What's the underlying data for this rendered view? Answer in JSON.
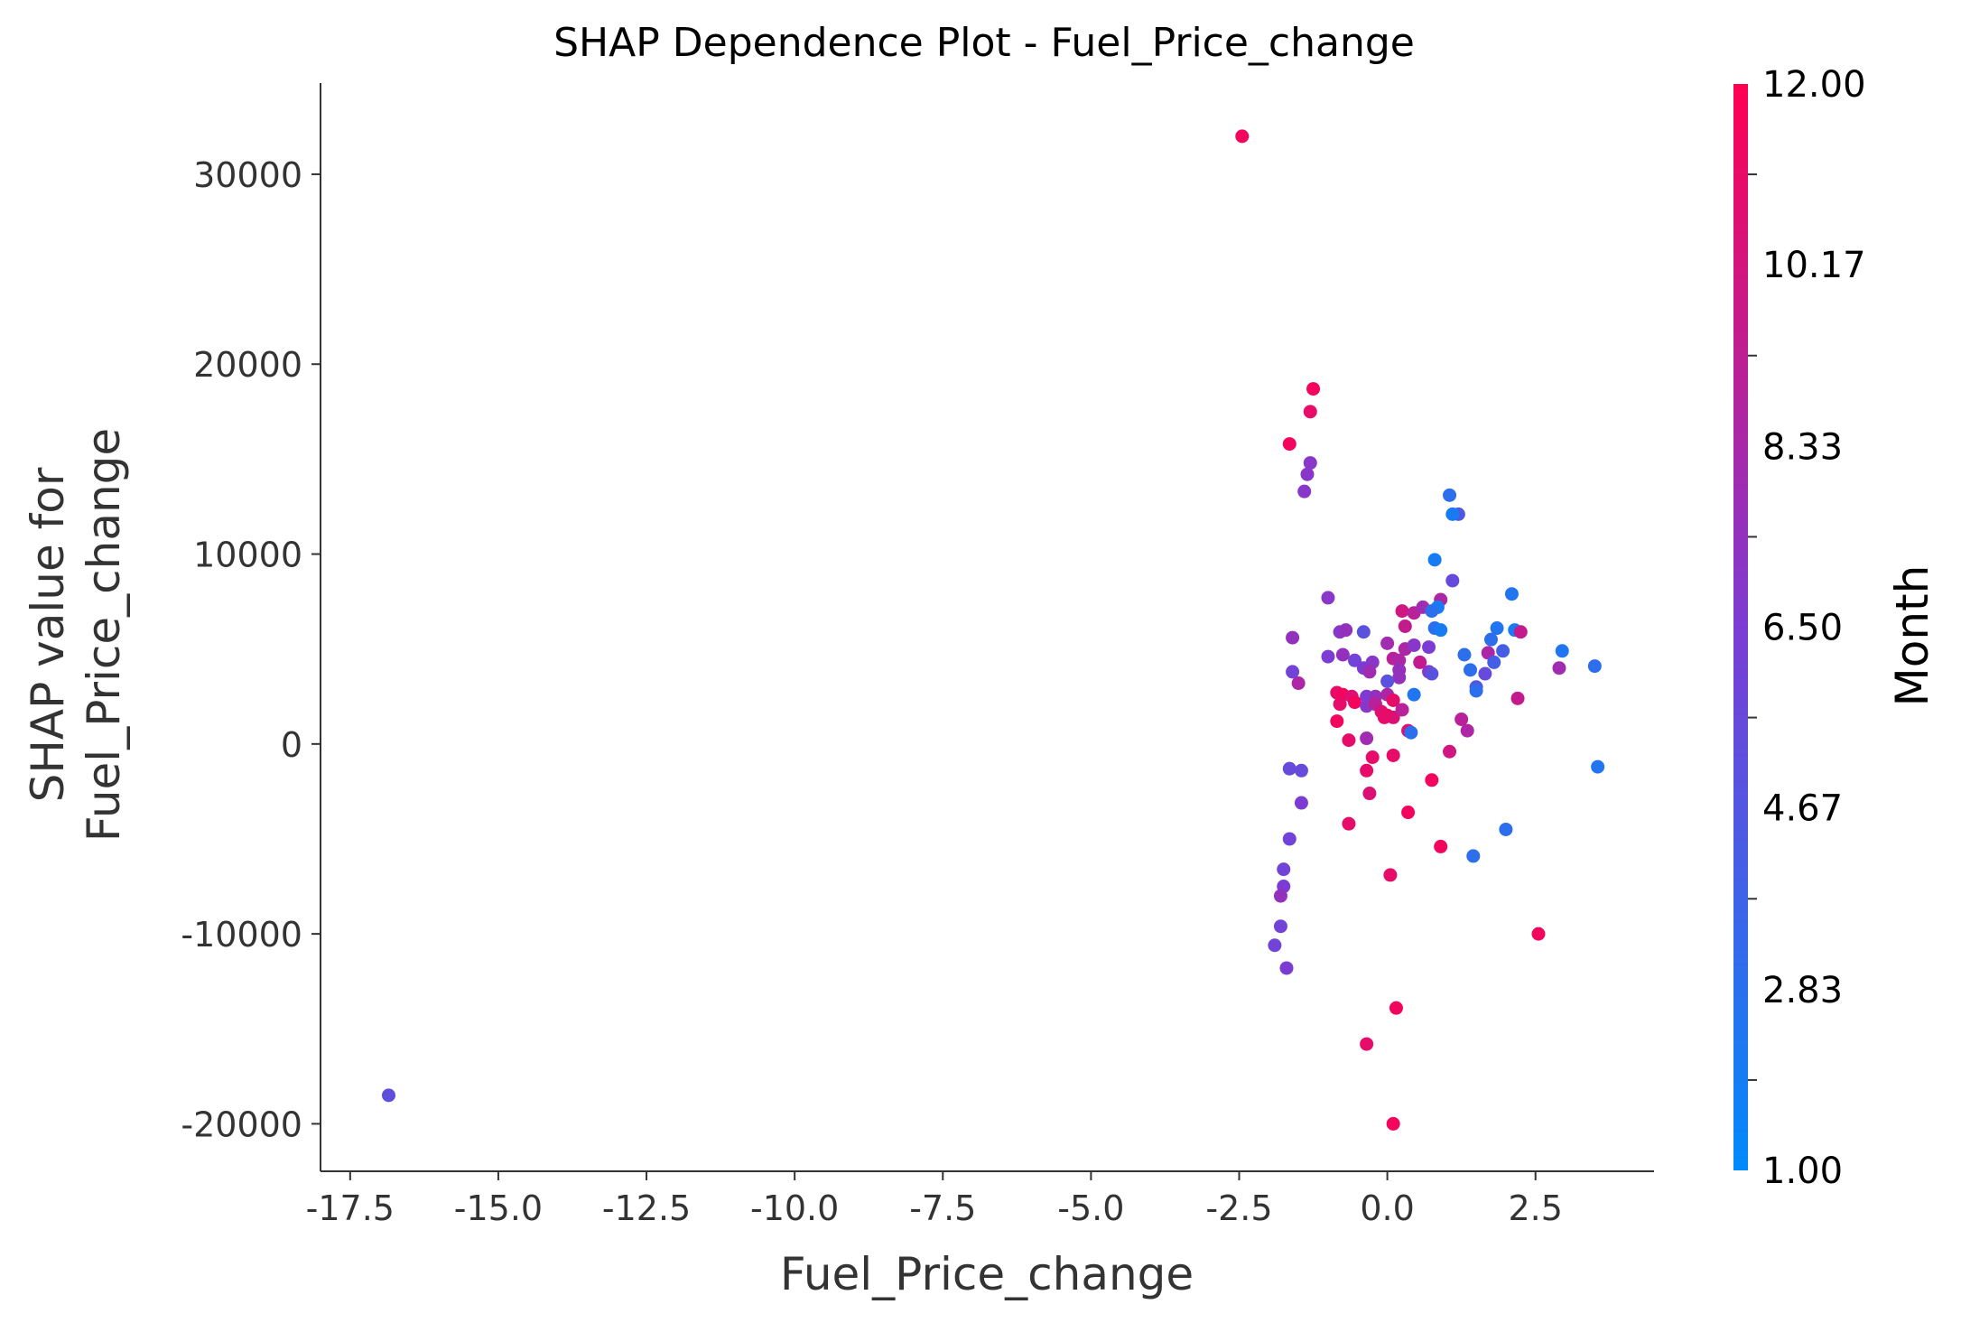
{
  "chart_data": {
    "type": "scatter",
    "title": "SHAP Dependence Plot - Fuel_Price_change",
    "xlabel": "Fuel_Price_change",
    "ylabel": [
      "SHAP value for",
      "Fuel_Price_change"
    ],
    "xlim": [
      -18.0,
      4.5
    ],
    "ylim": [
      -22500,
      34800
    ],
    "xticks": [
      -17.5,
      -15.0,
      -12.5,
      -10.0,
      -7.5,
      -5.0,
      -2.5,
      0.0,
      2.5
    ],
    "xtick_labels": [
      "-17.5",
      "-15.0",
      "-12.5",
      "-10.0",
      "-7.5",
      "-5.0",
      "-2.5",
      "0.0",
      "2.5"
    ],
    "yticks": [
      30000,
      20000,
      10000,
      0,
      -10000,
      -20000
    ],
    "ytick_labels": [
      "30000",
      "20000",
      "10000",
      "0",
      "-10000",
      "-20000"
    ],
    "grid": false,
    "colorbar": {
      "label": "Month",
      "min": 1.0,
      "max": 12.0,
      "ticks": [
        12.0,
        10.17,
        8.33,
        6.5,
        4.67,
        2.83,
        1.0
      ],
      "tick_labels": [
        "12.00",
        "10.17",
        "8.33",
        "6.50",
        "4.67",
        "2.83",
        "1.00"
      ],
      "color_low": "#008afb",
      "color_mid": "#7c3cd4",
      "color_high": "#ff0052"
    },
    "points": [
      {
        "x": -16.85,
        "y": -18500,
        "c": 5.2
      },
      {
        "x": -2.45,
        "y": 32000,
        "c": 11.5
      },
      {
        "x": -1.25,
        "y": 18700,
        "c": 11.5
      },
      {
        "x": -1.3,
        "y": 17500,
        "c": 11.0
      },
      {
        "x": -1.65,
        "y": 15800,
        "c": 11.5
      },
      {
        "x": -1.3,
        "y": 14800,
        "c": 7.0
      },
      {
        "x": -1.35,
        "y": 14200,
        "c": 7.0
      },
      {
        "x": -1.4,
        "y": 13300,
        "c": 7.0
      },
      {
        "x": 1.05,
        "y": 13100,
        "c": 3.0
      },
      {
        "x": 1.2,
        "y": 12100,
        "c": 4.5
      },
      {
        "x": 1.1,
        "y": 12100,
        "c": 2.0
      },
      {
        "x": 0.8,
        "y": 9700,
        "c": 2.0
      },
      {
        "x": 1.1,
        "y": 8600,
        "c": 5.5
      },
      {
        "x": -1.0,
        "y": 7700,
        "c": 7.0
      },
      {
        "x": 2.1,
        "y": 7900,
        "c": 2.5
      },
      {
        "x": 0.25,
        "y": 7000,
        "c": 10.0
      },
      {
        "x": 0.45,
        "y": 6900,
        "c": 9.0
      },
      {
        "x": 0.6,
        "y": 7200,
        "c": 8.0
      },
      {
        "x": 0.9,
        "y": 7600,
        "c": 8.5
      },
      {
        "x": 0.85,
        "y": 7200,
        "c": 2.0
      },
      {
        "x": 0.75,
        "y": 7000,
        "c": 3.0
      },
      {
        "x": 0.3,
        "y": 6200,
        "c": 9.5
      },
      {
        "x": 0.8,
        "y": 6100,
        "c": 3.0
      },
      {
        "x": 0.9,
        "y": 6000,
        "c": 2.0
      },
      {
        "x": 1.85,
        "y": 6100,
        "c": 2.5
      },
      {
        "x": 2.15,
        "y": 6000,
        "c": 2.0
      },
      {
        "x": 2.25,
        "y": 5900,
        "c": 9.5
      },
      {
        "x": -0.8,
        "y": 5900,
        "c": 7.0
      },
      {
        "x": -0.7,
        "y": 6000,
        "c": 7.5
      },
      {
        "x": -0.4,
        "y": 5900,
        "c": 5.0
      },
      {
        "x": -1.6,
        "y": 5600,
        "c": 7.5
      },
      {
        "x": 0.0,
        "y": 5300,
        "c": 8.0
      },
      {
        "x": 0.3,
        "y": 5000,
        "c": 8.5
      },
      {
        "x": 0.45,
        "y": 5200,
        "c": 7.0
      },
      {
        "x": 0.7,
        "y": 5100,
        "c": 6.5
      },
      {
        "x": 1.75,
        "y": 5500,
        "c": 3.0
      },
      {
        "x": 1.95,
        "y": 4900,
        "c": 4.0
      },
      {
        "x": 2.95,
        "y": 4900,
        "c": 2.5
      },
      {
        "x": 3.5,
        "y": 4100,
        "c": 3.0
      },
      {
        "x": -1.0,
        "y": 4600,
        "c": 6.5
      },
      {
        "x": -0.75,
        "y": 4700,
        "c": 7.5
      },
      {
        "x": -0.55,
        "y": 4400,
        "c": 6.0
      },
      {
        "x": -0.25,
        "y": 4300,
        "c": 7.0
      },
      {
        "x": 0.1,
        "y": 4500,
        "c": 9.0
      },
      {
        "x": 0.2,
        "y": 4400,
        "c": 8.5
      },
      {
        "x": 0.55,
        "y": 4300,
        "c": 9.5
      },
      {
        "x": 1.3,
        "y": 4700,
        "c": 3.0
      },
      {
        "x": 1.7,
        "y": 4800,
        "c": 8.5
      },
      {
        "x": 1.8,
        "y": 4300,
        "c": 4.0
      },
      {
        "x": 2.9,
        "y": 4000,
        "c": 8.0
      },
      {
        "x": -0.4,
        "y": 4000,
        "c": 6.5
      },
      {
        "x": -0.3,
        "y": 3800,
        "c": 8.0
      },
      {
        "x": 0.2,
        "y": 3900,
        "c": 7.5
      },
      {
        "x": 0.7,
        "y": 3800,
        "c": 7.0
      },
      {
        "x": 0.75,
        "y": 3700,
        "c": 5.0
      },
      {
        "x": 1.4,
        "y": 3900,
        "c": 3.0
      },
      {
        "x": 1.65,
        "y": 3700,
        "c": 5.5
      },
      {
        "x": -1.6,
        "y": 3800,
        "c": 6.0
      },
      {
        "x": -1.5,
        "y": 3200,
        "c": 8.5
      },
      {
        "x": 0.2,
        "y": 3500,
        "c": 7.5
      },
      {
        "x": 0.0,
        "y": 3300,
        "c": 5.0
      },
      {
        "x": 1.5,
        "y": 3000,
        "c": 4.5
      },
      {
        "x": 1.5,
        "y": 2800,
        "c": 3.0
      },
      {
        "x": -0.85,
        "y": 2700,
        "c": 11.0
      },
      {
        "x": -0.75,
        "y": 2600,
        "c": 11.5
      },
      {
        "x": -0.6,
        "y": 2500,
        "c": 10.5
      },
      {
        "x": -0.35,
        "y": 2500,
        "c": 6.5
      },
      {
        "x": -0.2,
        "y": 2500,
        "c": 7.5
      },
      {
        "x": 0.0,
        "y": 2600,
        "c": 8.5
      },
      {
        "x": 0.1,
        "y": 2300,
        "c": 11.0
      },
      {
        "x": 0.45,
        "y": 2600,
        "c": 2.5
      },
      {
        "x": 2.2,
        "y": 2400,
        "c": 9.5
      },
      {
        "x": -0.8,
        "y": 2100,
        "c": 11.0
      },
      {
        "x": -0.55,
        "y": 2200,
        "c": 11.5
      },
      {
        "x": -0.35,
        "y": 2000,
        "c": 7.0
      },
      {
        "x": -0.2,
        "y": 2100,
        "c": 9.0
      },
      {
        "x": -0.1,
        "y": 1700,
        "c": 10.5
      },
      {
        "x": 0.0,
        "y": 1500,
        "c": 11.5
      },
      {
        "x": 0.1,
        "y": 1400,
        "c": 10.5
      },
      {
        "x": 0.25,
        "y": 1800,
        "c": 9.0
      },
      {
        "x": -0.05,
        "y": 1400,
        "c": 11.0
      },
      {
        "x": -0.85,
        "y": 1200,
        "c": 11.5
      },
      {
        "x": 1.25,
        "y": 1300,
        "c": 9.0
      },
      {
        "x": 1.35,
        "y": 700,
        "c": 8.5
      },
      {
        "x": 0.35,
        "y": 700,
        "c": 10.5
      },
      {
        "x": 0.4,
        "y": 600,
        "c": 3.0
      },
      {
        "x": -0.35,
        "y": 300,
        "c": 8.0
      },
      {
        "x": -0.65,
        "y": 200,
        "c": 11.0
      },
      {
        "x": 1.05,
        "y": -400,
        "c": 10.0
      },
      {
        "x": 0.1,
        "y": -600,
        "c": 11.0
      },
      {
        "x": -0.25,
        "y": -700,
        "c": 11.0
      },
      {
        "x": 3.55,
        "y": -1200,
        "c": 2.5
      },
      {
        "x": -1.65,
        "y": -1300,
        "c": 5.5
      },
      {
        "x": -1.45,
        "y": -1400,
        "c": 5.5
      },
      {
        "x": -0.35,
        "y": -1400,
        "c": 11.0
      },
      {
        "x": 0.75,
        "y": -1900,
        "c": 11.5
      },
      {
        "x": -0.3,
        "y": -2600,
        "c": 10.5
      },
      {
        "x": -1.45,
        "y": -3100,
        "c": 6.5
      },
      {
        "x": 0.35,
        "y": -3600,
        "c": 11.5
      },
      {
        "x": -0.65,
        "y": -4200,
        "c": 11.0
      },
      {
        "x": 2.0,
        "y": -4500,
        "c": 3.0
      },
      {
        "x": -1.65,
        "y": -5000,
        "c": 6.0
      },
      {
        "x": 0.9,
        "y": -5400,
        "c": 11.5
      },
      {
        "x": 1.45,
        "y": -5900,
        "c": 3.0
      },
      {
        "x": -1.75,
        "y": -6600,
        "c": 6.0
      },
      {
        "x": 0.05,
        "y": -6900,
        "c": 11.0
      },
      {
        "x": -1.75,
        "y": -7500,
        "c": 6.5
      },
      {
        "x": -1.8,
        "y": -8000,
        "c": 7.5
      },
      {
        "x": -1.8,
        "y": -9600,
        "c": 6.0
      },
      {
        "x": 2.55,
        "y": -10000,
        "c": 11.5
      },
      {
        "x": -1.9,
        "y": -10600,
        "c": 6.0
      },
      {
        "x": -1.7,
        "y": -11800,
        "c": 6.5
      },
      {
        "x": 0.15,
        "y": -13900,
        "c": 11.5
      },
      {
        "x": -0.35,
        "y": -15800,
        "c": 11.0
      },
      {
        "x": 0.1,
        "y": -20000,
        "c": 11.5
      }
    ]
  }
}
